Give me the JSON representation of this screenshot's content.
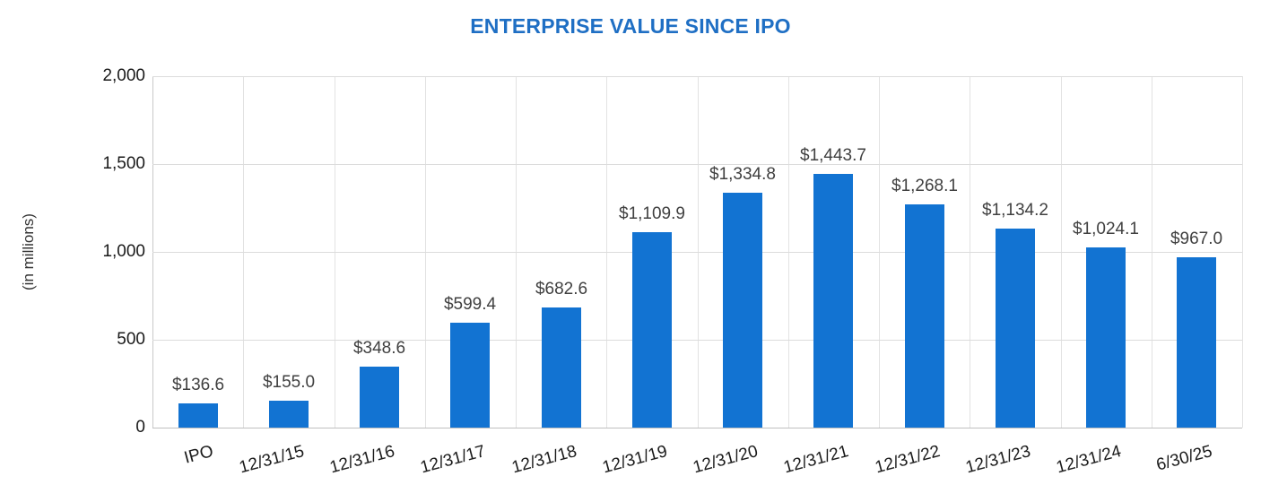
{
  "chart_data": {
    "type": "bar",
    "title": "ENTERPRISE VALUE SINCE IPO",
    "ylabel": "(in millions)",
    "categories": [
      "IPO",
      "12/31/15",
      "12/31/16",
      "12/31/17",
      "12/31/18",
      "12/31/19",
      "12/31/20",
      "12/31/21",
      "12/31/22",
      "12/31/23",
      "12/31/24",
      "6/30/25"
    ],
    "values": [
      136.6,
      155.0,
      348.6,
      599.4,
      682.6,
      1109.9,
      1334.8,
      1443.7,
      1268.1,
      1134.2,
      1024.1,
      967.0
    ],
    "data_labels": [
      "$136.6",
      "$155.0",
      "$348.6",
      "$599.4",
      "$682.6",
      "$1,109.9",
      "$1,334.8",
      "$1,443.7",
      "$1,268.1",
      "$1,134.2",
      "$1,024.1",
      "$967.0"
    ],
    "ylim": [
      0,
      2000
    ],
    "yticks": [
      0,
      500,
      1000,
      1500,
      2000
    ],
    "ytick_labels": [
      "0",
      "500",
      "1,000",
      "1,500",
      "2,000"
    ],
    "grid": "both",
    "legend": "none",
    "bar_color": "#1273D2",
    "title_color": "#1F6FC4",
    "data_label_color": "#404040"
  }
}
